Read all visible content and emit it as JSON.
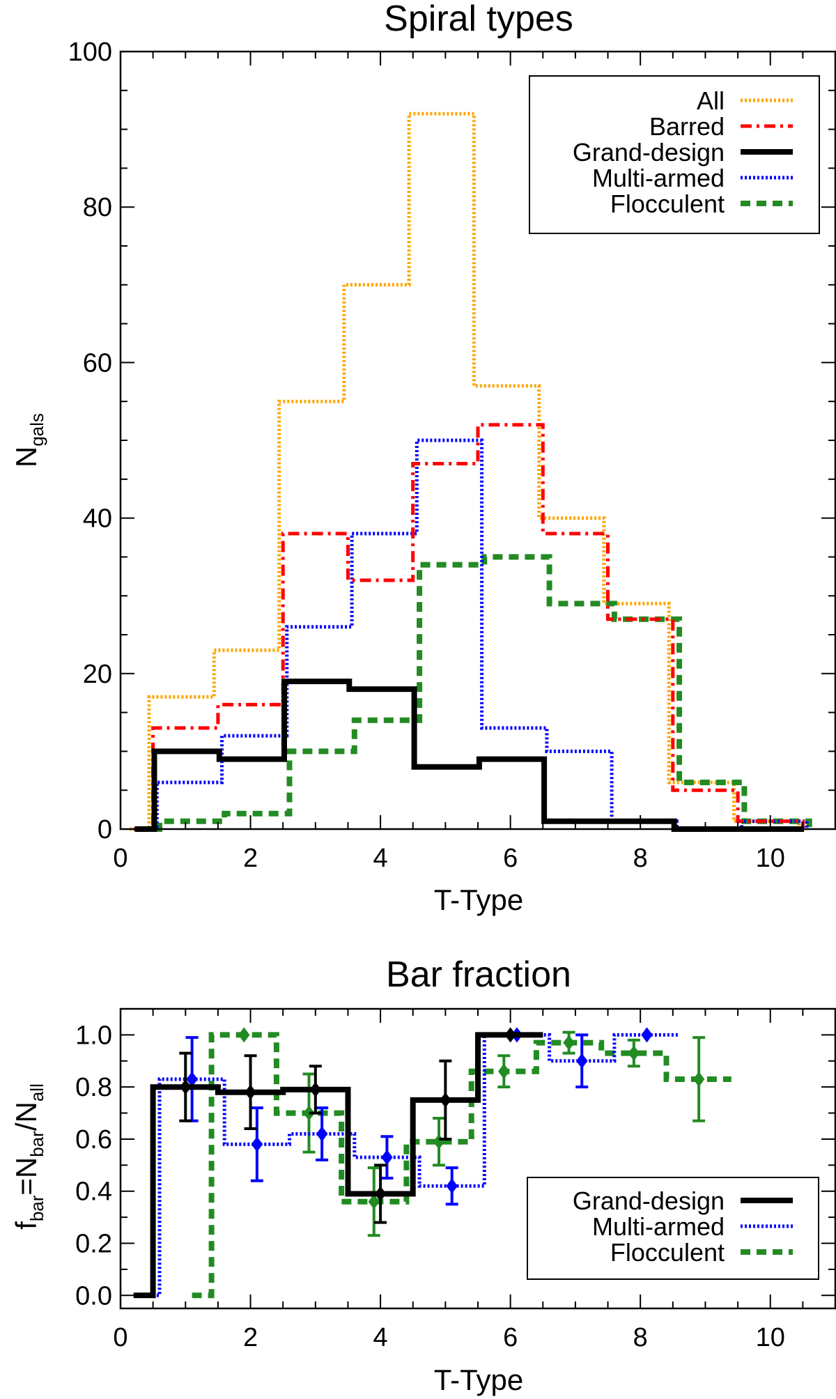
{
  "chart_data": [
    {
      "type": "step",
      "title": "Spiral types",
      "xlabel": "T-Type",
      "ylabel": {
        "main": "N",
        "sub": "gals"
      },
      "xlim": [
        0,
        11
      ],
      "ylim": [
        0,
        100
      ],
      "xticks": [
        "0",
        "2",
        "4",
        "6",
        "8",
        "10"
      ],
      "yticks": [
        "0",
        "20",
        "40",
        "60",
        "80",
        "100"
      ],
      "legend_position": "top-right",
      "series": [
        {
          "name": "All",
          "color": "#FFA500",
          "style": "dotted",
          "t_types": [
            1,
            2,
            3,
            4,
            5,
            6,
            7,
            8,
            9,
            10
          ],
          "values": [
            17,
            23,
            55,
            70,
            92,
            57,
            40,
            29,
            6,
            1
          ]
        },
        {
          "name": "Barred",
          "color": "#FF0000",
          "style": "dashdot",
          "t_types": [
            1,
            2,
            3,
            4,
            5,
            6,
            7,
            8,
            9,
            10
          ],
          "values": [
            13,
            16,
            38,
            32,
            47,
            52,
            38,
            27,
            5,
            1
          ]
        },
        {
          "name": "Grand-design",
          "color": "#000000",
          "style": "solid",
          "t_types": [
            1,
            2,
            3,
            4,
            5,
            6,
            7,
            8,
            9,
            10
          ],
          "values": [
            10,
            9,
            19,
            18,
            8,
            9,
            1,
            1,
            0,
            0
          ]
        },
        {
          "name": "Multi-armed",
          "color": "#0000FF",
          "style": "dotted",
          "t_types": [
            1,
            2,
            3,
            4,
            5,
            6,
            7,
            8,
            9,
            10
          ],
          "values": [
            6,
            12,
            26,
            38,
            50,
            13,
            10,
            1,
            0,
            1
          ]
        },
        {
          "name": "Flocculent",
          "color": "#228B22",
          "style": "dashed",
          "t_types": [
            1,
            2,
            3,
            4,
            5,
            6,
            7,
            8,
            9,
            10
          ],
          "values": [
            1,
            2,
            10,
            14,
            34,
            35,
            29,
            27,
            6,
            1
          ]
        }
      ]
    },
    {
      "type": "step-errorbar",
      "title": "Bar fraction",
      "xlabel": "T-Type",
      "ylabel": {
        "f": "f",
        "f_sub": "bar",
        "eq": "=N",
        "n_sub": "bar",
        "slash": "/N",
        "d_sub": "all"
      },
      "xlim": [
        0,
        11
      ],
      "ylim": [
        -0.05,
        1.1
      ],
      "xticks": [
        "0",
        "2",
        "4",
        "6",
        "8",
        "10"
      ],
      "yticks": [
        "0.0",
        "0.2",
        "0.4",
        "0.6",
        "0.8",
        "1.0"
      ],
      "legend_position": "bottom-right",
      "series": [
        {
          "name": "Grand-design",
          "color": "#000000",
          "style": "solid",
          "t_types": [
            1,
            2,
            3,
            4,
            5,
            6,
            7,
            8
          ],
          "values": [
            0.8,
            0.78,
            0.79,
            0.39,
            0.75,
            1.0,
            null,
            null
          ],
          "errors": [
            0.13,
            0.14,
            0.09,
            0.11,
            0.15,
            0,
            null,
            null
          ]
        },
        {
          "name": "Multi-armed",
          "color": "#0000FF",
          "style": "dotted",
          "t_types": [
            1,
            2,
            3,
            4,
            5,
            6,
            7,
            8
          ],
          "values": [
            0.83,
            0.58,
            0.62,
            0.53,
            0.42,
            1.0,
            0.9,
            1.0
          ],
          "errors": [
            0.16,
            0.14,
            0.1,
            0.08,
            0.07,
            0,
            0.1,
            0
          ]
        },
        {
          "name": "Flocculent",
          "color": "#228B22",
          "style": "dashed",
          "t_types": [
            2,
            3,
            4,
            5,
            6,
            7,
            8,
            9
          ],
          "values": [
            1.0,
            0.7,
            0.36,
            0.59,
            0.86,
            0.97,
            0.93,
            0.83
          ],
          "errors": [
            0,
            0.15,
            0.13,
            0.09,
            0.06,
            0.04,
            0.05,
            0.16
          ]
        }
      ]
    }
  ]
}
